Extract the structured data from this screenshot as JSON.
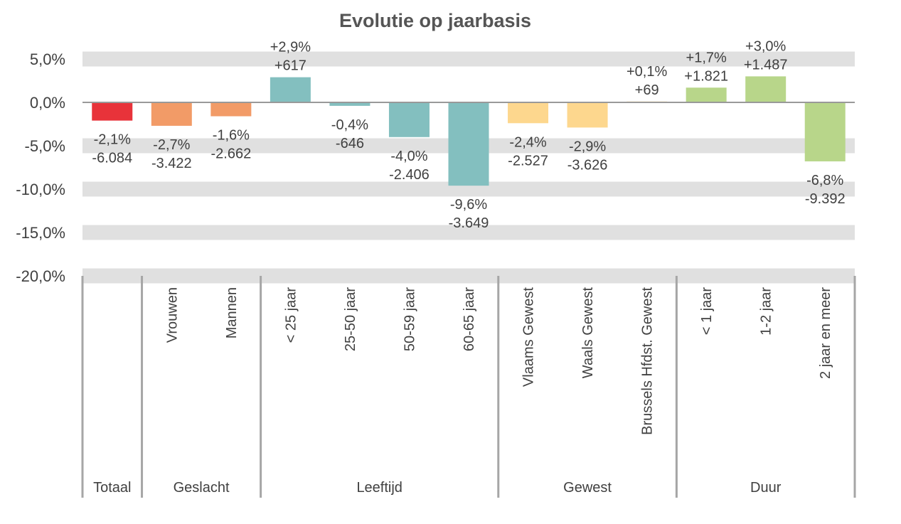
{
  "chart_data": {
    "type": "bar",
    "title": "Evolutie op jaarbasis",
    "ylim": [
      -20,
      5
    ],
    "yticks": [
      5,
      0,
      -5,
      -10,
      -15,
      -20
    ],
    "ytick_labels": [
      "5,0%",
      "0,0%",
      "-5,0%",
      "-10,0%",
      "-15,0%",
      "-20,0%"
    ],
    "grid": "horizontal bands",
    "categories": [
      "",
      "Vrouwen",
      "Mannen",
      "< 25 jaar",
      "25-50 jaar",
      "50-59 jaar",
      "60-65 jaar",
      "Vlaams Gewest",
      "Waals Gewest",
      "Brussels Hfdst. Gewest",
      "< 1 jaar",
      "1-2 jaar",
      "2 jaar en meer"
    ],
    "values": [
      -2.1,
      -2.7,
      -1.6,
      2.9,
      -0.4,
      -4.0,
      -9.6,
      -2.4,
      -2.9,
      0.1,
      1.7,
      3.0,
      -6.8
    ],
    "pct_labels": [
      "-2,1%",
      "-2,7%",
      "-1,6%",
      "+2,9%",
      "-0,4%",
      "-4,0%",
      "-9,6%",
      "-2,4%",
      "-2,9%",
      "+0,1%",
      "+1,7%",
      "+3,0%",
      "-6,8%"
    ],
    "abs_labels": [
      "-6.084",
      "-3.422",
      "-2.662",
      "+617",
      "-646",
      "-2.406",
      "-3.649",
      "-2.527",
      "-3.626",
      "+69",
      "+1.821",
      "+1.487",
      "-9.392"
    ],
    "groups": [
      {
        "label": "Totaal",
        "count": 1,
        "color": "#E8333A"
      },
      {
        "label": "Geslacht",
        "count": 2,
        "color": "#F29B67"
      },
      {
        "label": "Leeftijd",
        "count": 4,
        "color": "#83BFBF"
      },
      {
        "label": "Gewest",
        "count": 3,
        "color": "#FDD78E"
      },
      {
        "label": "Duur",
        "count": 3,
        "color": "#B8D68A"
      }
    ]
  }
}
